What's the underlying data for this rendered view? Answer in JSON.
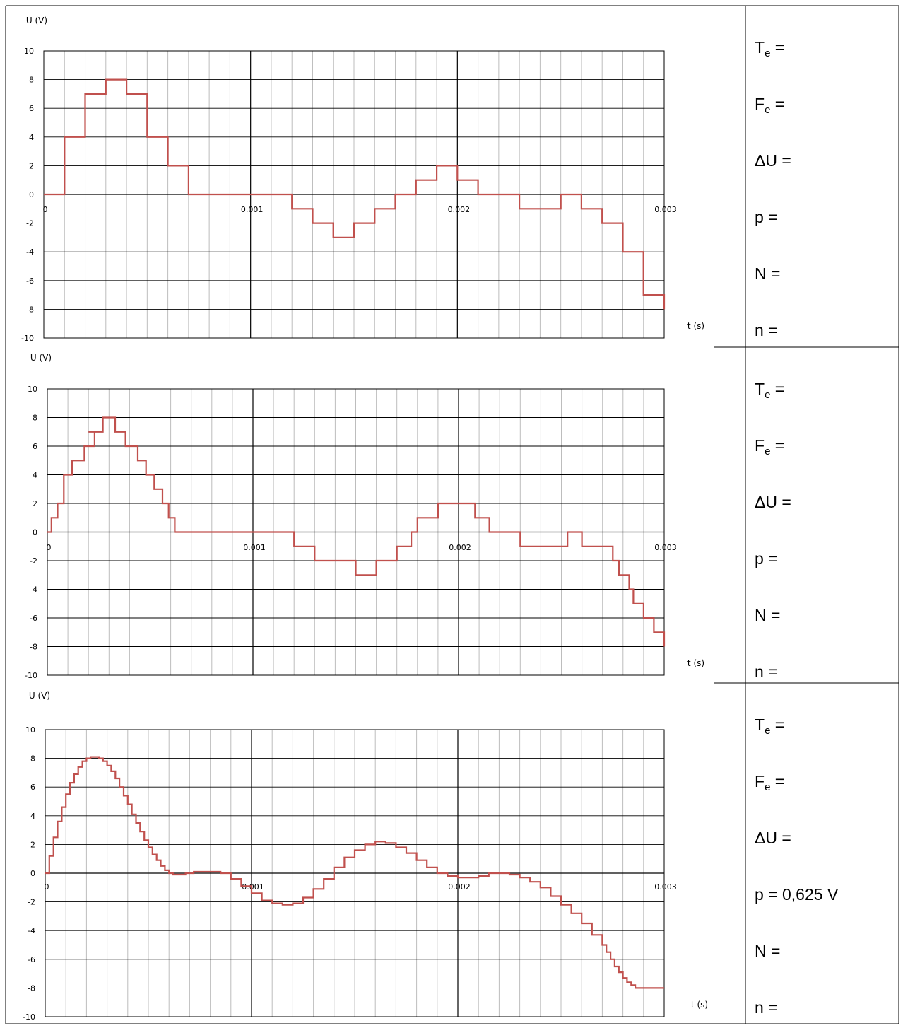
{
  "side_panels": [
    {
      "lines": [
        {
          "main": "T",
          "sub": "e",
          "rest": " ="
        },
        {
          "main": "F",
          "sub": "e",
          "rest": " ="
        },
        {
          "main": "ΔU =",
          "sub": "",
          "rest": ""
        },
        {
          "main": "p =",
          "sub": "",
          "rest": ""
        },
        {
          "main": "N =",
          "sub": "",
          "rest": ""
        },
        {
          "main": "n =",
          "sub": "",
          "rest": ""
        }
      ]
    },
    {
      "lines": [
        {
          "main": "T",
          "sub": "e",
          "rest": " ="
        },
        {
          "main": "F",
          "sub": "e",
          "rest": " ="
        },
        {
          "main": "ΔU =",
          "sub": "",
          "rest": ""
        },
        {
          "main": "p =",
          "sub": "",
          "rest": ""
        },
        {
          "main": "N =",
          "sub": "",
          "rest": ""
        },
        {
          "main": "n =",
          "sub": "",
          "rest": ""
        }
      ]
    },
    {
      "lines": [
        {
          "main": "T",
          "sub": "e",
          "rest": " ="
        },
        {
          "main": "F",
          "sub": "e",
          "rest": " ="
        },
        {
          "main": "ΔU =",
          "sub": "",
          "rest": ""
        },
        {
          "main": "p = 0,625 V",
          "sub": "",
          "rest": ""
        },
        {
          "main": "N =",
          "sub": "",
          "rest": ""
        },
        {
          "main": "n =",
          "sub": "",
          "rest": ""
        }
      ]
    }
  ],
  "chart_data": [
    {
      "type": "line",
      "step": true,
      "xlabel": "t (s)",
      "ylabel": "U (V)",
      "xlim": [
        0,
        0.003
      ],
      "ylim": [
        -10,
        10
      ],
      "x_ticks": [
        "0",
        "0.001",
        "0.002",
        "0.003"
      ],
      "y_ticks": [
        "10",
        "8",
        "6",
        "4",
        "2",
        "0",
        "-2",
        "-4",
        "-6",
        "-8",
        "-10"
      ],
      "grid": true,
      "line_color": "#c0504d",
      "series": [
        {
          "x": [
            0,
            0.0001,
            0.0002,
            0.0003,
            0.0004,
            0.0005,
            0.0006,
            0.0007,
            0.0008,
            0.0009,
            0.001,
            0.0011,
            0.0012,
            0.0013,
            0.0014,
            0.0015,
            0.0016,
            0.0017,
            0.0018,
            0.0019,
            0.002,
            0.0021,
            0.0022,
            0.0023,
            0.0024,
            0.0025,
            0.0026,
            0.0027,
            0.0028,
            0.0029,
            0.003
          ],
          "y": [
            0,
            4,
            7,
            8,
            7,
            4,
            2,
            0,
            0,
            0,
            0,
            0,
            -1,
            -2,
            -3,
            -2,
            -1,
            0,
            1,
            2,
            1,
            0,
            0,
            -1,
            -1,
            0,
            -1,
            -2,
            -4,
            -7,
            -8
          ]
        }
      ]
    },
    {
      "type": "line",
      "step": true,
      "xlabel": "t (s)",
      "ylabel": "U (V)",
      "xlim": [
        0,
        0.003
      ],
      "ylim": [
        -10,
        10
      ],
      "x_ticks": [
        "0",
        "0.001",
        "0.002",
        "0.003"
      ],
      "y_ticks": [
        "10",
        "8",
        "6",
        "4",
        "2",
        "0",
        "-2",
        "-4",
        "-6",
        "-8",
        "-10"
      ],
      "grid": true,
      "line_color": "#c0504d",
      "series": [
        {
          "x": [
            0,
            2e-05,
            5e-05,
            8e-05,
            0.00012,
            0.00018,
            0.00023,
            0.0002,
            0.00027,
            0.00033,
            0.00038,
            0.00044,
            0.00048,
            0.00052,
            0.00056,
            0.00059,
            0.00062,
            0.00068,
            0.00075,
            0.0009,
            0.0011,
            0.0012,
            0.00125,
            0.0013,
            0.0014,
            0.0015,
            0.0016,
            0.0017,
            0.00177,
            0.0018,
            0.00185,
            0.0019,
            0.002,
            0.00208,
            0.00215,
            0.0022,
            0.0023,
            0.0024,
            0.0025,
            0.00253,
            0.00256,
            0.0026,
            0.0027,
            0.00268,
            0.00275,
            0.00278,
            0.0028,
            0.00283,
            0.00285,
            0.0029,
            0.00295,
            0.003
          ],
          "y": [
            0,
            1,
            2,
            4,
            5,
            6,
            7,
            7,
            8,
            7,
            6,
            5,
            4,
            3,
            2,
            1,
            0,
            0,
            0,
            0,
            0,
            -1,
            -1,
            -2,
            -2,
            -3,
            -2,
            -1,
            0,
            1,
            1,
            2,
            2,
            1,
            0,
            0,
            -1,
            -1,
            -1,
            0,
            0,
            -1,
            -1,
            -1,
            -2,
            -3,
            -3,
            -4,
            -5,
            -6,
            -7,
            -8
          ]
        }
      ]
    },
    {
      "type": "line",
      "step": true,
      "xlabel": "t (s)",
      "ylabel": "U (V)",
      "xlim": [
        0,
        0.003
      ],
      "ylim": [
        -10,
        10
      ],
      "x_ticks": [
        "0",
        "0.001",
        "0.002",
        "0.003"
      ],
      "y_ticks": [
        "10",
        "8",
        "6",
        "4",
        "2",
        "0",
        "-2",
        "-4",
        "-6",
        "-8",
        "-10"
      ],
      "grid": true,
      "line_color": "#c0504d",
      "series": [
        {
          "x": [
            0,
            2e-05,
            4e-05,
            6e-05,
            8e-05,
            0.0001,
            0.00012,
            0.00014,
            0.00016,
            0.00018,
            0.0002,
            0.00022,
            0.00024,
            0.00026,
            0.00028,
            0.0003,
            0.00032,
            0.00034,
            0.00036,
            0.00038,
            0.0004,
            0.00042,
            0.00044,
            0.00046,
            0.00048,
            0.0005,
            0.00052,
            0.00054,
            0.00056,
            0.00058,
            0.0006,
            0.00062,
            0.00064,
            0.00066,
            0.00068,
            0.0007,
            0.00072,
            0.00074,
            0.00076,
            0.00078,
            0.0008,
            0.00085,
            0.0009,
            0.00095,
            0.001,
            0.00105,
            0.0011,
            0.00115,
            0.0012,
            0.00125,
            0.0013,
            0.00135,
            0.0014,
            0.00145,
            0.0015,
            0.00155,
            0.0016,
            0.00165,
            0.0017,
            0.00175,
            0.0018,
            0.00185,
            0.0019,
            0.00195,
            0.002,
            0.00205,
            0.0021,
            0.00215,
            0.0022,
            0.00225,
            0.0023,
            0.00235,
            0.0024,
            0.00245,
            0.0025,
            0.00255,
            0.0026,
            0.00265,
            0.0027,
            0.00272,
            0.00274,
            0.00276,
            0.00278,
            0.0028,
            0.00282,
            0.00284,
            0.00286,
            0.00288,
            0.0029,
            0.00292,
            0.00294,
            0.00296,
            0.00298,
            0.003
          ],
          "y": [
            0,
            1.2,
            2.5,
            3.6,
            4.6,
            5.5,
            6.3,
            6.9,
            7.4,
            7.8,
            8.0,
            8.1,
            8.1,
            8.0,
            7.8,
            7.5,
            7.1,
            6.6,
            6.0,
            5.4,
            4.8,
            4.1,
            3.5,
            2.9,
            2.3,
            1.8,
            1.3,
            0.9,
            0.5,
            0.2,
            0.0,
            -0.1,
            -0.1,
            -0.1,
            0.0,
            0.0,
            0.1,
            0.1,
            0.1,
            0.1,
            0.1,
            0.0,
            -0.4,
            -0.9,
            -1.4,
            -1.9,
            -2.1,
            -2.2,
            -2.1,
            -1.7,
            -1.1,
            -0.4,
            0.4,
            1.1,
            1.6,
            2.0,
            2.2,
            2.1,
            1.8,
            1.4,
            0.9,
            0.4,
            0.0,
            -0.2,
            -0.3,
            -0.3,
            -0.2,
            0.0,
            0.0,
            -0.1,
            -0.3,
            -0.6,
            -1.0,
            -1.6,
            -2.2,
            -2.8,
            -3.5,
            -4.3,
            -5.0,
            -5.5,
            -6.0,
            -6.5,
            -6.9,
            -7.3,
            -7.6,
            -7.8,
            -8.0,
            -8.0,
            -8.0,
            -8.0,
            -8.0,
            -8.0,
            -8.0,
            -8.0
          ]
        }
      ]
    }
  ]
}
